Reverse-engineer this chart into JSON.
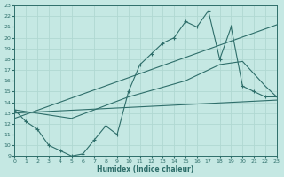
{
  "xlabel": "Humidex (Indice chaleur)",
  "xlim": [
    0,
    23
  ],
  "ylim": [
    9,
    23
  ],
  "xticks": [
    0,
    1,
    2,
    3,
    4,
    5,
    6,
    7,
    8,
    9,
    10,
    11,
    12,
    13,
    14,
    15,
    16,
    17,
    18,
    19,
    20,
    21,
    22,
    23
  ],
  "yticks": [
    9,
    10,
    11,
    12,
    13,
    14,
    15,
    16,
    17,
    18,
    19,
    20,
    21,
    22,
    23
  ],
  "bg_color": "#c5e8e3",
  "grid_color": "#b0d8d2",
  "line_color": "#2e6e6a",
  "line1_x": [
    0,
    1,
    2,
    3,
    4,
    5,
    6,
    7,
    8,
    9,
    10,
    11,
    12,
    13,
    14,
    15,
    16,
    17,
    18,
    19,
    20,
    21,
    22,
    23
  ],
  "line1_y": [
    13.3,
    12.2,
    11.5,
    10.0,
    9.5,
    9.0,
    9.2,
    10.5,
    11.8,
    11.0,
    15.0,
    17.5,
    18.5,
    19.5,
    20.0,
    21.5,
    21.0,
    22.5,
    18.0,
    21.0,
    15.5,
    15.0,
    14.5,
    14.5
  ],
  "line2_x": [
    0,
    5,
    10,
    15,
    18,
    20,
    22,
    23
  ],
  "line2_y": [
    13.3,
    12.5,
    14.5,
    16.0,
    17.5,
    17.8,
    15.5,
    14.5
  ],
  "line3_x": [
    0,
    23
  ],
  "line3_y": [
    13.0,
    14.2
  ],
  "line4_x": [
    0,
    23
  ],
  "line4_y": [
    12.5,
    21.2
  ]
}
